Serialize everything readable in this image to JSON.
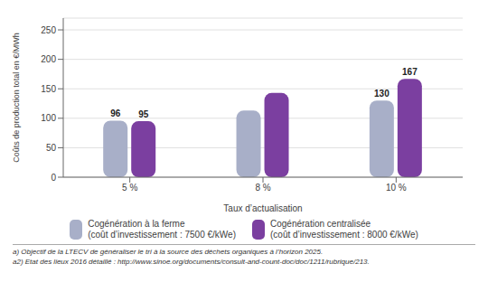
{
  "chart_data": {
    "type": "bar",
    "categories": [
      "5 %",
      "8 %",
      "10 %"
    ],
    "series": [
      {
        "name": "Cogénération à la ferme\n(coût d’investissement : 7500 €/kWe)",
        "color": "#a8afc8",
        "values": [
          96,
          113,
          130
        ],
        "value_labels": [
          "96",
          null,
          "130"
        ]
      },
      {
        "name": "Cogénération centralisée\n(coût d’investissement : 8000 €/kWe)",
        "color": "#7b3fa0",
        "values": [
          95,
          143,
          167
        ],
        "value_labels": [
          "95",
          null,
          "167"
        ]
      }
    ],
    "xlabel": "Taux d’actualisation",
    "ylabel": "Coûts de production total en €/MWh",
    "ylim": [
      0,
      270
    ],
    "yticks": [
      0,
      50,
      100,
      150,
      200,
      250
    ],
    "grid": true,
    "data_labels": true,
    "legend": "bottom",
    "annotations": [
      "a) Objectif de la LTECV de généraliser le tri à la source des déchets organiques à l’horizon 2025.",
      "a2) Etat des lieux 2016 détaillé : http://www.sinoe.org/documents/consult-and-count-doc/doc/1211/rubrique/213."
    ]
  }
}
